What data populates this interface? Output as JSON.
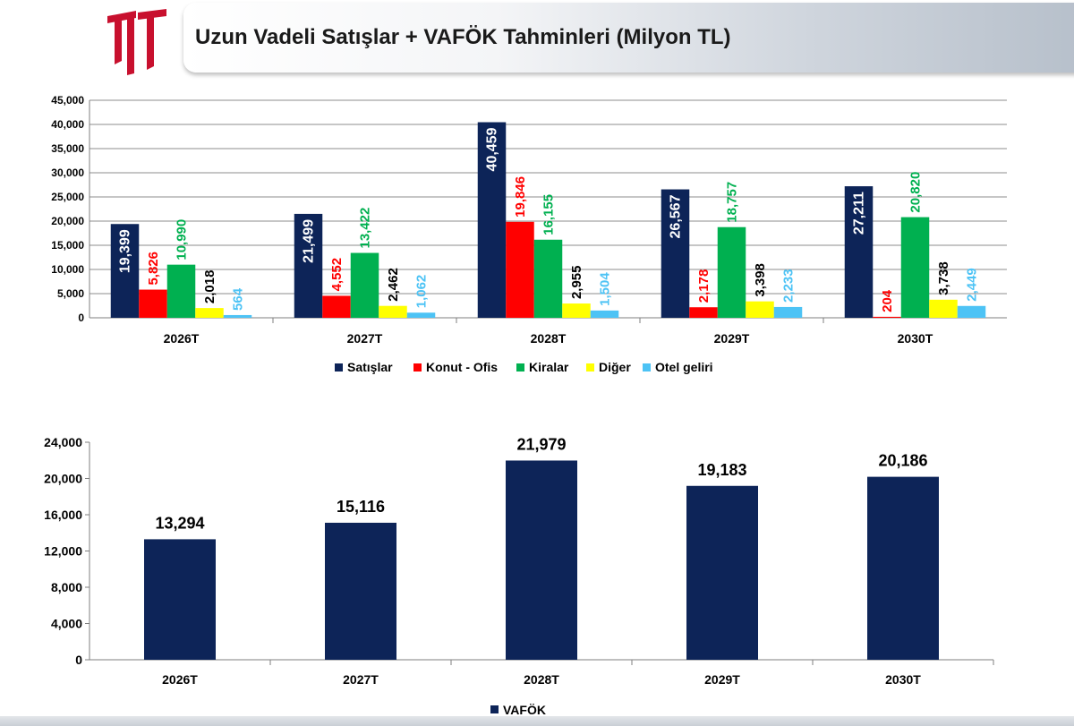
{
  "header": {
    "title": "Uzun Vadeli Satışlar + VAFÖK Tahminleri (Milyon TL)"
  },
  "colors": {
    "logo": "#c8102e",
    "navy": "#0d2458",
    "red": "#ff0000",
    "green": "#00b050",
    "yellow": "#ffff00",
    "lightblue": "#4dc3f5",
    "black_label": "#000000"
  },
  "chart_data": [
    {
      "type": "bar",
      "title": "",
      "xlabel": "",
      "ylabel": "",
      "categories": [
        "2026T",
        "2027T",
        "2028T",
        "2029T",
        "2030T"
      ],
      "ylim": [
        0,
        45000
      ],
      "yticks": [
        0,
        5000,
        10000,
        15000,
        20000,
        25000,
        30000,
        35000,
        40000,
        45000
      ],
      "ytick_labels": [
        "0",
        "5,000",
        "10,000",
        "15,000",
        "20,000",
        "25,000",
        "30,000",
        "35,000",
        "40,000",
        "45,000"
      ],
      "grid": true,
      "legend": "bottom",
      "series": [
        {
          "name": "Satışlar",
          "color": "#0d2458",
          "label_color": "#ffffff",
          "label_inside": true,
          "values": [
            19399,
            21499,
            40459,
            26567,
            27211
          ],
          "labels": [
            "19,399",
            "21,499",
            "40,459",
            "26,567",
            "27,211"
          ]
        },
        {
          "name": "Konut - Ofis",
          "color": "#ff0000",
          "label_color": "#ff0000",
          "label_inside": false,
          "values": [
            5826,
            4552,
            19846,
            2178,
            204
          ],
          "labels": [
            "5,826",
            "4,552",
            "19,846",
            "2,178",
            "204"
          ]
        },
        {
          "name": "Kiralar",
          "color": "#00b050",
          "label_color": "#00b050",
          "label_inside": false,
          "values": [
            10990,
            13422,
            16155,
            18757,
            20820
          ],
          "labels": [
            "10,990",
            "13,422",
            "16,155",
            "18,757",
            "20,820"
          ]
        },
        {
          "name": "Diğer",
          "color": "#ffff00",
          "label_color": "#000000",
          "label_inside": false,
          "values": [
            2018,
            2462,
            2955,
            3398,
            3738
          ],
          "labels": [
            "2,018",
            "2,462",
            "2,955",
            "3,398",
            "3,738"
          ]
        },
        {
          "name": "Otel geliri",
          "color": "#4dc3f5",
          "label_color": "#4dc3f5",
          "label_inside": false,
          "values": [
            564,
            1062,
            1504,
            2233,
            2449
          ],
          "labels": [
            "564",
            "1,062",
            "1,504",
            "2,233",
            "2,449"
          ]
        }
      ]
    },
    {
      "type": "bar",
      "title": "",
      "xlabel": "",
      "ylabel": "",
      "categories": [
        "2026T",
        "2027T",
        "2028T",
        "2029T",
        "2030T"
      ],
      "ylim": [
        0,
        24000
      ],
      "yticks": [
        0,
        4000,
        8000,
        12000,
        16000,
        20000,
        24000
      ],
      "ytick_labels": [
        "0",
        "4,000",
        "8,000",
        "12,000",
        "16,000",
        "20,000",
        "24,000"
      ],
      "grid": false,
      "legend": "bottom-left",
      "series": [
        {
          "name": "VAFÖK",
          "color": "#0d2458",
          "label_color": "#000000",
          "values": [
            13294,
            15116,
            21979,
            19183,
            20186
          ],
          "labels": [
            "13,294",
            "15,116",
            "21,979",
            "19,183",
            "20,186"
          ]
        }
      ]
    }
  ]
}
